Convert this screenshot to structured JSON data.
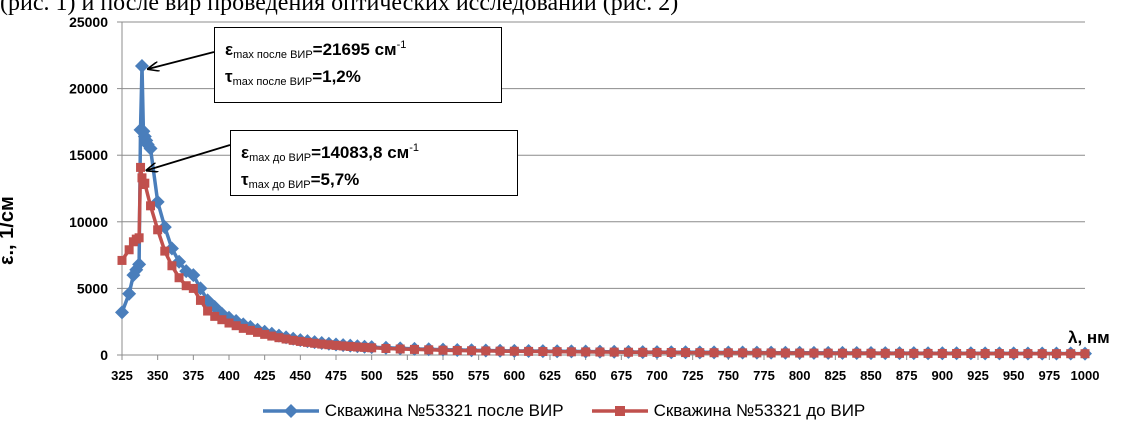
{
  "page_text": "(рис. 1) и после вир проведения оптических исследований (рис. 2)",
  "chart_data": {
    "type": "line",
    "xlabel": "λ, нм",
    "ylabel": "ε., 1/см",
    "xlim": [
      325,
      1000
    ],
    "ylim": [
      0,
      25000
    ],
    "y_ticks": [
      0,
      5000,
      10000,
      15000,
      20000,
      25000
    ],
    "y_tick_labels": [
      "0",
      "5000",
      "10000",
      "15000",
      "20000",
      "25000"
    ],
    "x_ticks": [
      325,
      350,
      375,
      400,
      425,
      450,
      475,
      500,
      525,
      550,
      575,
      600,
      625,
      650,
      675,
      700,
      725,
      750,
      775,
      800,
      825,
      850,
      875,
      900,
      925,
      950,
      975,
      1000
    ],
    "x_tick_labels": [
      "325",
      "350",
      "375",
      "400",
      "425",
      "450",
      "475",
      "500",
      "525",
      "550",
      "575",
      "600",
      "625",
      "650",
      "675",
      "700",
      "725",
      "750",
      "775",
      "800",
      "825",
      "850",
      "875",
      "900",
      "925",
      "950",
      "975",
      "1000"
    ],
    "grid": "horizontal",
    "legend_position": "bottom",
    "series": [
      {
        "name": "Скважина №53321 после ВИР",
        "color": "#4a7ebb",
        "marker": "diamond",
        "points": [
          [
            325,
            3200
          ],
          [
            330,
            4600
          ],
          [
            333,
            6000
          ],
          [
            335,
            6400
          ],
          [
            337,
            6800
          ],
          [
            338,
            16900
          ],
          [
            339,
            21695
          ],
          [
            340,
            16800
          ],
          [
            341,
            16400
          ],
          [
            342,
            16100
          ],
          [
            343,
            15800
          ],
          [
            345,
            15500
          ],
          [
            350,
            11500
          ],
          [
            355,
            9600
          ],
          [
            360,
            8000
          ],
          [
            365,
            7000
          ],
          [
            370,
            6300
          ],
          [
            375,
            6000
          ],
          [
            380,
            5000
          ],
          [
            385,
            4100
          ],
          [
            390,
            3600
          ],
          [
            395,
            3100
          ],
          [
            400,
            2800
          ],
          [
            405,
            2550
          ],
          [
            410,
            2300
          ],
          [
            415,
            2100
          ],
          [
            420,
            1900
          ],
          [
            425,
            1750
          ],
          [
            430,
            1600
          ],
          [
            435,
            1450
          ],
          [
            440,
            1320
          ],
          [
            445,
            1220
          ],
          [
            450,
            1120
          ],
          [
            455,
            1040
          ],
          [
            460,
            970
          ],
          [
            465,
            900
          ],
          [
            470,
            840
          ],
          [
            475,
            790
          ],
          [
            480,
            740
          ],
          [
            485,
            700
          ],
          [
            490,
            660
          ],
          [
            495,
            620
          ],
          [
            500,
            590
          ],
          [
            510,
            540
          ],
          [
            520,
            500
          ],
          [
            530,
            460
          ],
          [
            540,
            430
          ],
          [
            550,
            400
          ],
          [
            560,
            380
          ],
          [
            570,
            360
          ],
          [
            580,
            340
          ],
          [
            590,
            320
          ],
          [
            600,
            310
          ],
          [
            610,
            300
          ],
          [
            620,
            290
          ],
          [
            630,
            280
          ],
          [
            640,
            270
          ],
          [
            650,
            260
          ],
          [
            660,
            250
          ],
          [
            670,
            240
          ],
          [
            680,
            230
          ],
          [
            690,
            220
          ],
          [
            700,
            215
          ],
          [
            710,
            210
          ],
          [
            720,
            205
          ],
          [
            730,
            200
          ],
          [
            740,
            195
          ],
          [
            750,
            190
          ],
          [
            760,
            185
          ],
          [
            770,
            180
          ],
          [
            780,
            176
          ],
          [
            790,
            172
          ],
          [
            800,
            168
          ],
          [
            810,
            164
          ],
          [
            820,
            160
          ],
          [
            830,
            156
          ],
          [
            840,
            152
          ],
          [
            850,
            148
          ],
          [
            860,
            145
          ],
          [
            870,
            142
          ],
          [
            880,
            139
          ],
          [
            890,
            136
          ],
          [
            900,
            133
          ],
          [
            910,
            130
          ],
          [
            920,
            127
          ],
          [
            930,
            124
          ],
          [
            940,
            121
          ],
          [
            950,
            118
          ],
          [
            960,
            115
          ],
          [
            970,
            112
          ],
          [
            980,
            110
          ],
          [
            990,
            108
          ],
          [
            1000,
            106
          ]
        ]
      },
      {
        "name": "Скважина №53321 до ВИР",
        "color": "#c0504d",
        "marker": "square",
        "points": [
          [
            325,
            7100
          ],
          [
            330,
            7900
          ],
          [
            333,
            8500
          ],
          [
            335,
            8700
          ],
          [
            337,
            8800
          ],
          [
            338,
            14084
          ],
          [
            339,
            13300
          ],
          [
            340,
            12800
          ],
          [
            341,
            12900
          ],
          [
            345,
            11200
          ],
          [
            350,
            9400
          ],
          [
            355,
            7800
          ],
          [
            360,
            6700
          ],
          [
            365,
            5800
          ],
          [
            370,
            5200
          ],
          [
            375,
            5000
          ],
          [
            380,
            4100
          ],
          [
            385,
            3300
          ],
          [
            390,
            2900
          ],
          [
            395,
            2650
          ],
          [
            400,
            2400
          ],
          [
            405,
            2200
          ],
          [
            410,
            2000
          ],
          [
            415,
            1850
          ],
          [
            420,
            1700
          ],
          [
            425,
            1550
          ],
          [
            430,
            1420
          ],
          [
            435,
            1300
          ],
          [
            440,
            1200
          ],
          [
            445,
            1100
          ],
          [
            450,
            1020
          ],
          [
            455,
            950
          ],
          [
            460,
            880
          ],
          [
            465,
            820
          ],
          [
            470,
            770
          ],
          [
            475,
            720
          ],
          [
            480,
            680
          ],
          [
            485,
            640
          ],
          [
            490,
            600
          ],
          [
            495,
            570
          ],
          [
            500,
            540
          ],
          [
            510,
            490
          ],
          [
            520,
            450
          ],
          [
            530,
            420
          ],
          [
            540,
            390
          ],
          [
            550,
            360
          ],
          [
            560,
            340
          ],
          [
            570,
            320
          ],
          [
            580,
            305
          ],
          [
            590,
            290
          ],
          [
            600,
            280
          ],
          [
            610,
            270
          ],
          [
            620,
            260
          ],
          [
            630,
            250
          ],
          [
            640,
            240
          ],
          [
            650,
            232
          ],
          [
            660,
            224
          ],
          [
            670,
            216
          ],
          [
            680,
            208
          ],
          [
            690,
            200
          ],
          [
            700,
            194
          ],
          [
            710,
            188
          ],
          [
            720,
            182
          ],
          [
            730,
            176
          ],
          [
            740,
            171
          ],
          [
            750,
            166
          ],
          [
            760,
            161
          ],
          [
            770,
            157
          ],
          [
            780,
            153
          ],
          [
            790,
            149
          ],
          [
            800,
            145
          ],
          [
            810,
            141
          ],
          [
            820,
            138
          ],
          [
            830,
            135
          ],
          [
            840,
            132
          ],
          [
            850,
            129
          ],
          [
            860,
            126
          ],
          [
            870,
            123
          ],
          [
            880,
            120
          ],
          [
            890,
            118
          ],
          [
            900,
            116
          ],
          [
            910,
            114
          ],
          [
            920,
            112
          ],
          [
            930,
            110
          ],
          [
            940,
            108
          ],
          [
            950,
            106
          ],
          [
            960,
            104
          ],
          [
            970,
            102
          ],
          [
            980,
            100
          ],
          [
            990,
            98
          ],
          [
            1000,
            96
          ]
        ]
      }
    ],
    "annotations": [
      {
        "name": "after",
        "eps_sym": "ε",
        "eps_sub": "max после ВИР",
        "eps_val": "=21695 см",
        "eps_sup": "-1",
        "tau_sym": "τ",
        "tau_sub": "max после ВИР",
        "tau_val": "=1,2%",
        "target": [
          339,
          21695
        ]
      },
      {
        "name": "before",
        "eps_sym": "ε",
        "eps_sub": "max до ВИР",
        "eps_val": "=14083,8 см",
        "eps_sup": "-1",
        "tau_sym": "τ",
        "tau_sub": "max до ВИР",
        "tau_val": "=5,7%",
        "target": [
          338,
          14084
        ]
      }
    ]
  }
}
